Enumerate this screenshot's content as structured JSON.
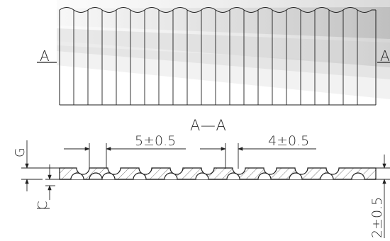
{
  "drawing": {
    "section_marker_left": "A",
    "section_marker_right": "A",
    "section_title": "A—A",
    "dim_pitch_wide": "5±0.5",
    "dim_pitch_narrow": "4±0.5",
    "dim_thickness": "2±0.5",
    "label_g": "G",
    "label_c": "C"
  }
}
